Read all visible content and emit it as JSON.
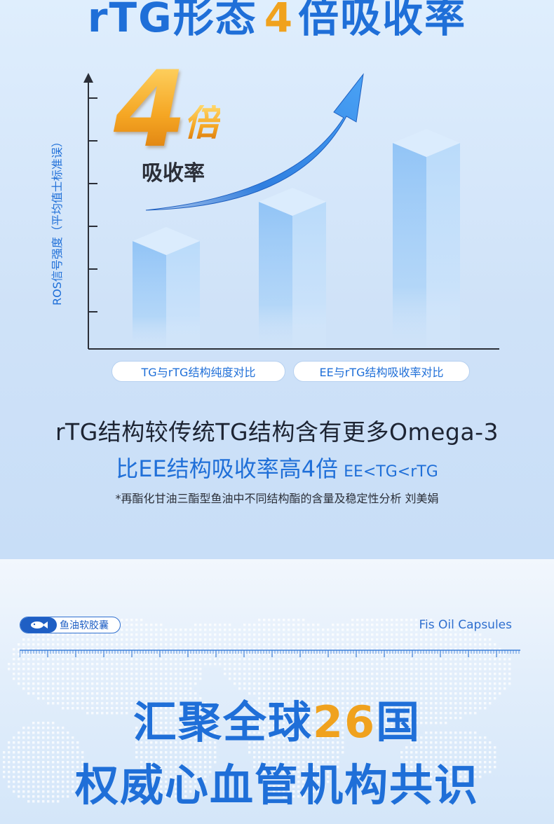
{
  "section1": {
    "title_prefix": "rTG形态",
    "title_number": "4",
    "title_suffix": "倍吸收率",
    "y_axis_label": "ROS信号强度（平均值士标准误）",
    "badge_number": "4",
    "badge_unit": "倍",
    "badge_text": "吸收率",
    "pill_left": "TG与rTG结构纯度对比",
    "pill_right": "EE与rTG结构吸收率对比",
    "headline_1": "rTG结构较传统TG结构含有更多Omega-3",
    "headline_2": "比EE结构吸收率高4倍",
    "headline_2_note": "EE<TG<rTG",
    "source": "*再酯化甘油三酯型鱼油中不同结构酯的含量及稳定性分析 刘美娟"
  },
  "chart_data": {
    "type": "bar",
    "ylabel": "ROS信号强度（平均值士标准误）",
    "categories": [
      "",
      "",
      ""
    ],
    "values": [
      2.2,
      3.0,
      4.2
    ],
    "colors": {
      "bar": "#9ccaf7",
      "axis": "#2b2f38",
      "arrow": "#2f7fe0"
    },
    "y_ticks": 6
  },
  "section2": {
    "badge_label": "鱼油软胶囊",
    "brand_label": "Fis Oil Capsules",
    "line1_pre": "汇聚全球",
    "line1_num": "26",
    "line1_post": "国",
    "line2": "权威心血管机构共识"
  }
}
